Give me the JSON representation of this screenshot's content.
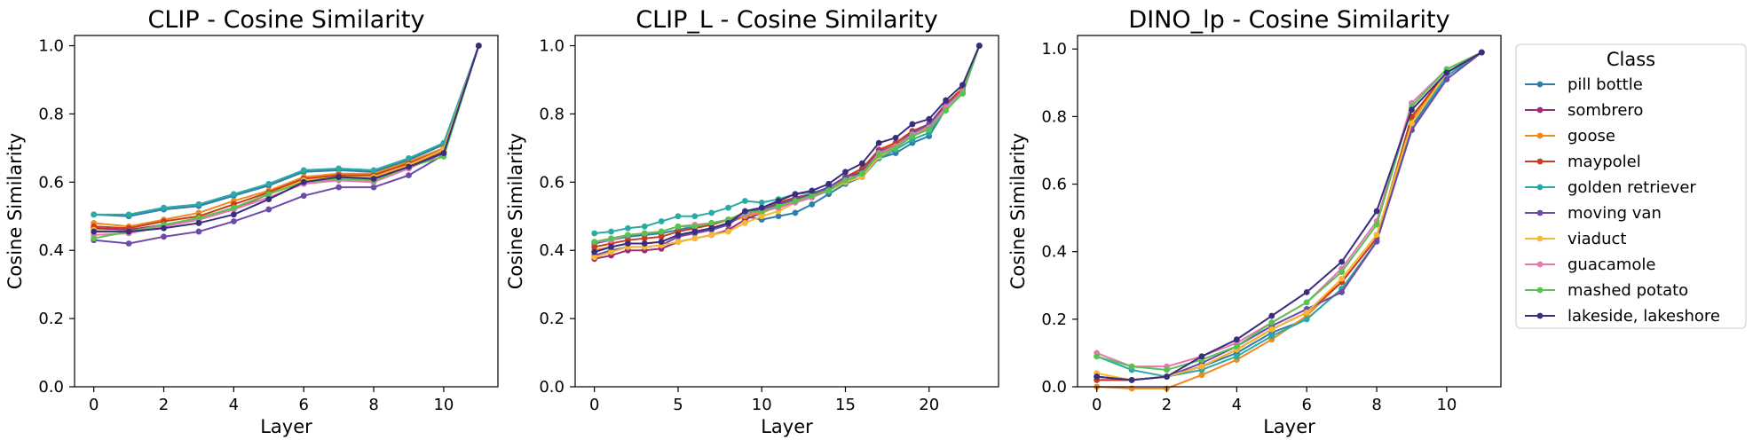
{
  "chart_data": [
    {
      "type": "line",
      "title": "CLIP - Cosine Similarity",
      "xlabel": "Layer",
      "ylabel": "Cosine Similarity",
      "xlim": [
        -0.55,
        11.55
      ],
      "ylim": [
        0.0,
        1.03
      ],
      "xticks": [
        0,
        2,
        4,
        6,
        8,
        10
      ],
      "yticks": [
        0.0,
        0.2,
        0.4,
        0.6,
        0.8,
        1.0
      ],
      "grid": false,
      "x": [
        0,
        1,
        2,
        3,
        4,
        5,
        6,
        7,
        8,
        9,
        10,
        11
      ],
      "series": [
        {
          "name": "pill bottle",
          "values": [
            0.505,
            0.5,
            0.52,
            0.53,
            0.56,
            0.59,
            0.63,
            0.635,
            0.63,
            0.665,
            0.71,
            1.0
          ]
        },
        {
          "name": "sombrero",
          "values": [
            0.465,
            0.46,
            0.475,
            0.49,
            0.52,
            0.565,
            0.605,
            0.615,
            0.61,
            0.65,
            0.69,
            1.0
          ]
        },
        {
          "name": "goose",
          "values": [
            0.48,
            0.47,
            0.49,
            0.51,
            0.545,
            0.575,
            0.615,
            0.625,
            0.625,
            0.66,
            0.7,
            1.0
          ]
        },
        {
          "name": "maypolel",
          "values": [
            0.47,
            0.465,
            0.485,
            0.5,
            0.535,
            0.57,
            0.61,
            0.62,
            0.62,
            0.655,
            0.695,
            1.0
          ]
        },
        {
          "name": "golden retriever",
          "values": [
            0.505,
            0.505,
            0.525,
            0.535,
            0.565,
            0.595,
            0.635,
            0.64,
            0.635,
            0.67,
            0.715,
            1.0
          ]
        },
        {
          "name": "moving van",
          "values": [
            0.43,
            0.42,
            0.44,
            0.455,
            0.485,
            0.52,
            0.56,
            0.585,
            0.585,
            0.62,
            0.68,
            1.0
          ]
        },
        {
          "name": "viaduct",
          "values": [
            0.46,
            0.455,
            0.47,
            0.49,
            0.525,
            0.565,
            0.605,
            0.615,
            0.615,
            0.65,
            0.695,
            1.0
          ]
        },
        {
          "name": "guacamole",
          "values": [
            0.445,
            0.45,
            0.47,
            0.49,
            0.52,
            0.555,
            0.595,
            0.605,
            0.6,
            0.64,
            0.685,
            1.0
          ]
        },
        {
          "name": "mashed potato",
          "values": [
            0.435,
            0.455,
            0.475,
            0.495,
            0.525,
            0.565,
            0.6,
            0.61,
            0.605,
            0.645,
            0.675,
            1.0
          ]
        },
        {
          "name": "lakeside, lakeshore",
          "values": [
            0.455,
            0.455,
            0.465,
            0.48,
            0.505,
            0.55,
            0.6,
            0.615,
            0.61,
            0.645,
            0.685,
            1.0
          ]
        }
      ]
    },
    {
      "type": "line",
      "title": "CLIP_L - Cosine Similarity",
      "xlabel": "Layer",
      "ylabel": "Cosine Similarity",
      "xlim": [
        -1.15,
        24.15
      ],
      "ylim": [
        0.0,
        1.03
      ],
      "xticks": [
        0,
        5,
        10,
        15,
        20
      ],
      "yticks": [
        0.0,
        0.2,
        0.4,
        0.6,
        0.8,
        1.0
      ],
      "grid": false,
      "x": [
        0,
        1,
        2,
        3,
        4,
        5,
        6,
        7,
        8,
        9,
        10,
        11,
        12,
        13,
        14,
        15,
        16,
        17,
        18,
        19,
        20,
        21,
        22,
        23
      ],
      "series": [
        {
          "name": "pill bottle",
          "values": [
            0.42,
            0.43,
            0.44,
            0.445,
            0.45,
            0.46,
            0.47,
            0.48,
            0.49,
            0.5,
            0.49,
            0.5,
            0.51,
            0.535,
            0.565,
            0.595,
            0.615,
            0.67,
            0.685,
            0.715,
            0.735,
            0.815,
            0.86,
            1.0
          ]
        },
        {
          "name": "sombrero",
          "values": [
            0.375,
            0.385,
            0.4,
            0.4,
            0.405,
            0.425,
            0.435,
            0.445,
            0.46,
            0.49,
            0.51,
            0.53,
            0.55,
            0.565,
            0.585,
            0.615,
            0.625,
            0.685,
            0.705,
            0.74,
            0.77,
            0.82,
            0.875,
            1.0
          ]
        },
        {
          "name": "goose",
          "values": [
            0.4,
            0.41,
            0.42,
            0.42,
            0.425,
            0.445,
            0.455,
            0.465,
            0.48,
            0.5,
            0.51,
            0.53,
            0.545,
            0.56,
            0.58,
            0.61,
            0.635,
            0.69,
            0.71,
            0.745,
            0.765,
            0.825,
            0.87,
            1.0
          ]
        },
        {
          "name": "maypolel",
          "values": [
            0.41,
            0.42,
            0.43,
            0.435,
            0.44,
            0.455,
            0.465,
            0.475,
            0.49,
            0.51,
            0.52,
            0.54,
            0.555,
            0.565,
            0.585,
            0.615,
            0.64,
            0.695,
            0.715,
            0.75,
            0.77,
            0.83,
            0.875,
            1.0
          ]
        },
        {
          "name": "golden retriever",
          "values": [
            0.45,
            0.455,
            0.465,
            0.47,
            0.485,
            0.5,
            0.5,
            0.51,
            0.525,
            0.545,
            0.54,
            0.55,
            0.565,
            0.57,
            0.58,
            0.6,
            0.625,
            0.67,
            0.695,
            0.725,
            0.745,
            0.815,
            0.86,
            1.0
          ]
        },
        {
          "name": "moving van",
          "values": [
            0.385,
            0.4,
            0.41,
            0.41,
            0.415,
            0.44,
            0.45,
            0.46,
            0.475,
            0.51,
            0.52,
            0.535,
            0.55,
            0.565,
            0.585,
            0.615,
            0.63,
            0.69,
            0.705,
            0.745,
            0.77,
            0.825,
            0.865,
            1.0
          ]
        },
        {
          "name": "viaduct",
          "values": [
            0.38,
            0.395,
            0.41,
            0.41,
            0.415,
            0.425,
            0.435,
            0.445,
            0.455,
            0.48,
            0.5,
            0.515,
            0.54,
            0.555,
            0.575,
            0.6,
            0.615,
            0.675,
            0.7,
            0.735,
            0.755,
            0.815,
            0.865,
            1.0
          ]
        },
        {
          "name": "guacamole",
          "values": [
            0.425,
            0.43,
            0.445,
            0.45,
            0.455,
            0.47,
            0.475,
            0.48,
            0.49,
            0.505,
            0.515,
            0.525,
            0.54,
            0.555,
            0.575,
            0.605,
            0.625,
            0.685,
            0.705,
            0.74,
            0.76,
            0.82,
            0.865,
            1.0
          ]
        },
        {
          "name": "mashed potato",
          "values": [
            0.425,
            0.435,
            0.445,
            0.45,
            0.455,
            0.47,
            0.47,
            0.48,
            0.49,
            0.51,
            0.515,
            0.53,
            0.545,
            0.56,
            0.575,
            0.605,
            0.625,
            0.68,
            0.7,
            0.735,
            0.755,
            0.81,
            0.86,
            1.0
          ]
        },
        {
          "name": "lakeside, lakeshore",
          "values": [
            0.395,
            0.41,
            0.42,
            0.42,
            0.425,
            0.445,
            0.455,
            0.465,
            0.48,
            0.515,
            0.525,
            0.545,
            0.565,
            0.575,
            0.595,
            0.63,
            0.655,
            0.715,
            0.73,
            0.77,
            0.785,
            0.84,
            0.885,
            1.0
          ]
        }
      ]
    },
    {
      "type": "line",
      "title": "DINO_lp - Cosine Similarity",
      "xlabel": "Layer",
      "ylabel": "Cosine Similarity",
      "xlim": [
        -0.55,
        11.55
      ],
      "ylim": [
        0.0,
        1.04
      ],
      "xticks": [
        0,
        2,
        4,
        6,
        8,
        10
      ],
      "yticks": [
        0.0,
        0.2,
        0.4,
        0.6,
        0.8,
        1.0
      ],
      "grid": false,
      "legend": {
        "title": "Class",
        "placement": "outside-right"
      },
      "x": [
        0,
        1,
        2,
        3,
        4,
        5,
        6,
        7,
        8,
        9,
        10,
        11
      ],
      "series": [
        {
          "name": "pill bottle",
          "color": "#2e7fa8",
          "values": [
            0.02,
            0.02,
            0.03,
            0.06,
            0.1,
            0.16,
            0.2,
            0.29,
            0.43,
            0.77,
            0.92,
            0.99
          ]
        },
        {
          "name": "sombrero",
          "color": "#9b2e72",
          "values": [
            0.03,
            0.02,
            0.03,
            0.06,
            0.11,
            0.17,
            0.22,
            0.31,
            0.44,
            0.8,
            0.93,
            0.99
          ]
        },
        {
          "name": "goose",
          "color": "#ef8a1c",
          "values": [
            0.0,
            -0.005,
            -0.005,
            0.035,
            0.08,
            0.14,
            0.21,
            0.31,
            0.44,
            0.79,
            0.93,
            0.99
          ]
        },
        {
          "name": "maypolel",
          "color": "#c83c22",
          "values": [
            0.02,
            0.02,
            0.03,
            0.06,
            0.11,
            0.17,
            0.22,
            0.31,
            0.44,
            0.8,
            0.93,
            0.99
          ]
        },
        {
          "name": "golden retriever",
          "color": "#2aaaa4",
          "values": [
            0.09,
            0.05,
            0.03,
            0.05,
            0.09,
            0.15,
            0.2,
            0.29,
            0.43,
            0.76,
            0.92,
            0.99
          ]
        },
        {
          "name": "moving van",
          "color": "#6d4aa8",
          "values": [
            0.03,
            0.02,
            0.03,
            0.07,
            0.12,
            0.18,
            0.23,
            0.28,
            0.43,
            0.76,
            0.91,
            0.99
          ]
        },
        {
          "name": "viaduct",
          "color": "#f8b932",
          "values": [
            0.04,
            0.02,
            0.03,
            0.06,
            0.11,
            0.17,
            0.22,
            0.32,
            0.45,
            0.78,
            0.93,
            0.99
          ]
        },
        {
          "name": "guacamole",
          "color": "#e876b4",
          "values": [
            0.1,
            0.06,
            0.06,
            0.09,
            0.13,
            0.19,
            0.25,
            0.35,
            0.49,
            0.84,
            0.94,
            0.99
          ]
        },
        {
          "name": "mashed potato",
          "color": "#58c351",
          "values": [
            0.09,
            0.06,
            0.05,
            0.08,
            0.12,
            0.19,
            0.25,
            0.34,
            0.48,
            0.83,
            0.94,
            0.99
          ]
        },
        {
          "name": "lakeside, lakeshore",
          "color": "#3a2d7e",
          "values": [
            0.03,
            0.02,
            0.03,
            0.09,
            0.14,
            0.21,
            0.28,
            0.37,
            0.52,
            0.82,
            0.93,
            0.99
          ]
        }
      ]
    }
  ]
}
